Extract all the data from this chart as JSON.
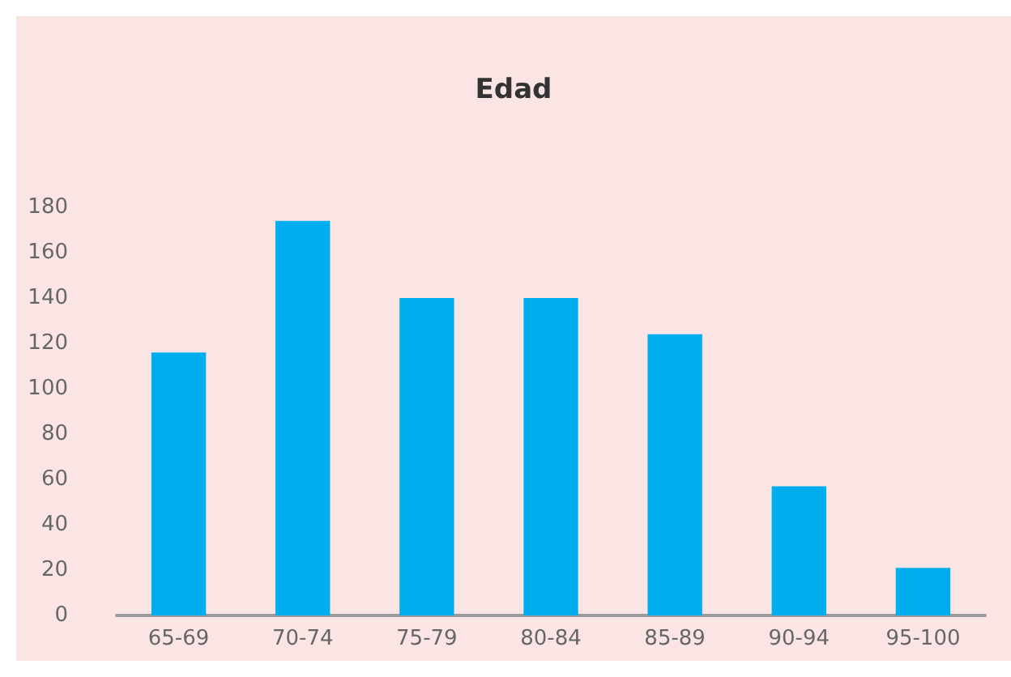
{
  "chart_data": {
    "type": "bar",
    "title": "Edad",
    "categories": [
      "65-69",
      "70-74",
      "75-79",
      "80-84",
      "85-89",
      "90-94",
      "95-100"
    ],
    "values": [
      116,
      174,
      140,
      140,
      124,
      57,
      21
    ],
    "color": "#00aeef",
    "ylim": [
      0,
      180
    ],
    "yticks": [
      0,
      20,
      40,
      60,
      80,
      100,
      120,
      140,
      160,
      180
    ],
    "grid": false
  }
}
